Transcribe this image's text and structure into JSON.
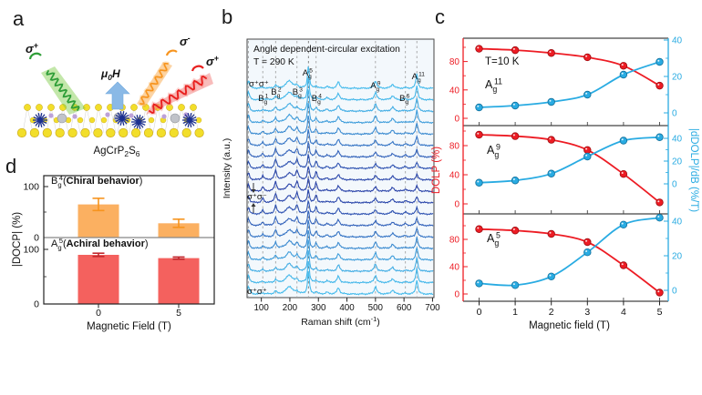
{
  "panels": {
    "a_letter": "a",
    "b_letter": "b",
    "c_letter": "c",
    "d_letter": "d"
  },
  "panel_a": {
    "compound": {
      "pre": "AgCrP",
      "sub1": "2",
      "mid": "S",
      "sub2": "6"
    },
    "field_label": {
      "mu": "μ",
      "sub": "0",
      "h": "H"
    },
    "beam_labels": {
      "incident": {
        "base": "σ",
        "sup": "+"
      },
      "scattered_minus": {
        "base": "σ",
        "sup": "-"
      },
      "scattered_plus": {
        "base": "σ",
        "sup": "+"
      }
    },
    "colors": {
      "incident_beam": "#7ac943",
      "incident_wave": "#2f9e38",
      "scattered_minus_beam": "#f7941e",
      "scattered_minus_halo": "#fbc98a",
      "scattered_plus_beam": "#e8201f",
      "scattered_plus_halo": "#f9a09a",
      "field_arrow": "#8ab9e6",
      "sulfur": "#f2de2a",
      "sulfur_edge": "#c7a419",
      "chromium": "#1b2f8f",
      "silver": "#c0c3c9",
      "silver_edge": "#8f939a",
      "phosphorus": "#bda2d8"
    }
  },
  "panel_b": {
    "title_line1": "Angle dependent-circular excitation",
    "title_line2": "T = 290 K",
    "ylabel": "Intensity (a.u.)",
    "xlabel": {
      "pre": "Raman shift (cm",
      "sup": "-1",
      "post": ")"
    },
    "x_ticks": [
      100,
      200,
      300,
      400,
      500,
      600,
      700
    ],
    "pol_labels": {
      "top": "σ⁺σ⁺",
      "middle": "σ⁺σ⁻",
      "bottom": "σ⁺σ⁺"
    },
    "peak_labels": [
      {
        "base": "B",
        "sub": "g",
        "sup": "1",
        "x": 105,
        "row": "low"
      },
      {
        "base": "B",
        "sub": "g",
        "sup": "2",
        "x": 150,
        "row": "high"
      },
      {
        "base": "B",
        "sub": "g",
        "sup": "3",
        "x": 225,
        "row": "high"
      },
      {
        "base": "B",
        "sub": "g",
        "sup": "4",
        "x": 292,
        "row": "low"
      },
      {
        "base": "A",
        "sub": "g",
        "sup": "5",
        "x": 260,
        "row": "top"
      },
      {
        "base": "A",
        "sub": "g",
        "sup": "9",
        "x": 498,
        "row": "mid"
      },
      {
        "base": "B",
        "sub": "g",
        "sup": "6",
        "x": 600,
        "row": "low"
      },
      {
        "base": "A",
        "sub": "g",
        "sup": "11",
        "x": 643,
        "row": "top2"
      }
    ]
  },
  "panel_c": {
    "temp_label": "T=10 K",
    "xlabel": "Magnetic field (T)",
    "ylabel_left": "DOLP (%)",
    "ylabel_right": "|dDOLP|/dB (%/T)",
    "x_ticks": [
      0,
      1,
      2,
      3,
      4,
      5
    ],
    "colors": {
      "left": "#ed1c24",
      "left_dark": "#9e0c10",
      "right": "#29abe2",
      "right_dark": "#11709c"
    }
  },
  "panel_d": {
    "xlabel": "Magnetic Field (T)",
    "ylabel": "|DOCP| (%)",
    "x_ticks": [
      "0",
      "5"
    ]
  },
  "chart_data": [
    {
      "id": "b-raman",
      "type": "line",
      "subtype": "stacked-raman-spectra",
      "title": "Angle dependent-circular excitation",
      "temperature": "T = 290 K",
      "n_traces": 19,
      "x_range": [
        50,
        705
      ],
      "x_unit": "cm-1",
      "peaks": [
        {
          "pos": 55,
          "amp": 9,
          "w": 4,
          "sym": "E"
        },
        {
          "pos": 105,
          "amp": 3.2,
          "w": 4,
          "sym": "B"
        },
        {
          "pos": 150,
          "amp": 7,
          "w": 4.5,
          "sym": "B"
        },
        {
          "pos": 198,
          "amp": 8.5,
          "w": 13,
          "sym": "E"
        },
        {
          "pos": 225,
          "amp": 6.5,
          "w": 5,
          "sym": "B"
        },
        {
          "pos": 265,
          "amp": 26,
          "w": 3.5,
          "sym": "A"
        },
        {
          "pos": 292,
          "amp": 6,
          "w": 4,
          "sym": "B"
        },
        {
          "pos": 330,
          "amp": 2,
          "w": 5,
          "sym": "E"
        },
        {
          "pos": 370,
          "amp": 7,
          "w": 5.5,
          "sym": "E"
        },
        {
          "pos": 500,
          "amp": 8.5,
          "w": 5,
          "sym": "A"
        },
        {
          "pos": 560,
          "amp": 4.5,
          "w": 6,
          "sym": "E"
        },
        {
          "pos": 605,
          "amp": 1.6,
          "w": 5,
          "sym": "B"
        },
        {
          "pos": 645,
          "amp": 16,
          "w": 4,
          "sym": "A2"
        }
      ],
      "dashed_lines": [
        55,
        105,
        150,
        225,
        265,
        292,
        500,
        605,
        645
      ],
      "color_light": "#45bbec",
      "color_dark": "#2b44a9"
    },
    {
      "id": "c-top",
      "type": "line",
      "mode": {
        "base": "A",
        "sub": "g",
        "sup": "11"
      },
      "x": [
        0,
        1,
        2,
        3,
        4,
        5
      ],
      "series": [
        {
          "name": "DOLP",
          "axis": "left",
          "color": "#ed1c24",
          "values": [
            98,
            96,
            92,
            86,
            74,
            46
          ]
        },
        {
          "name": "|dDOLP|/dB",
          "axis": "right",
          "color": "#29abe2",
          "values": [
            3,
            4,
            6,
            10,
            21,
            28
          ]
        }
      ],
      "yticks_left": [
        0,
        40,
        80
      ],
      "yticks_right": [
        0,
        20,
        40
      ]
    },
    {
      "id": "c-middle",
      "type": "line",
      "mode": {
        "base": "A",
        "sub": "g",
        "sup": "9"
      },
      "x": [
        0,
        1,
        2,
        3,
        4,
        5
      ],
      "series": [
        {
          "name": "DOLP",
          "axis": "left",
          "color": "#ed1c24",
          "values": [
            95,
            93,
            88,
            74,
            41,
            2
          ]
        },
        {
          "name": "|dDOLP|/dB",
          "axis": "right",
          "color": "#29abe2",
          "values": [
            1,
            3,
            9,
            24,
            38,
            41
          ]
        }
      ],
      "yticks_left": [
        0,
        40,
        80
      ],
      "yticks_right": [
        0,
        20,
        40
      ]
    },
    {
      "id": "c-bottom",
      "type": "line",
      "mode": {
        "base": "A",
        "sub": "g",
        "sup": "5"
      },
      "x": [
        0,
        1,
        2,
        3,
        4,
        5
      ],
      "series": [
        {
          "name": "DOLP",
          "axis": "left",
          "color": "#ed1c24",
          "values": [
            95,
            93,
            88,
            76,
            42,
            2
          ]
        },
        {
          "name": "|dDOLP|/dB",
          "axis": "right",
          "color": "#29abe2",
          "values": [
            4,
            3,
            8,
            22,
            38,
            42
          ]
        }
      ],
      "yticks_left": [
        0,
        40,
        80
      ],
      "yticks_right": [
        0,
        20,
        40
      ]
    },
    {
      "id": "d-top",
      "type": "bar",
      "mode": {
        "base": "B",
        "sub": "g",
        "sup": "4"
      },
      "behavior_open": "(",
      "behavior": "Chiral behavior",
      "behavior_close": ")",
      "categories": [
        "0",
        "5"
      ],
      "values": [
        65,
        28
      ],
      "errors": [
        12,
        8
      ],
      "bar_color": "#fbb061",
      "error_color": "#f7941d",
      "yticks": [
        0,
        100
      ]
    },
    {
      "id": "d-bottom",
      "type": "bar",
      "mode": {
        "base": "A",
        "sub": "g",
        "sup": "5"
      },
      "behavior_open": "(",
      "behavior": "Achiral behavior",
      "behavior_close": ")",
      "categories": [
        "0",
        "5"
      ],
      "values": [
        90,
        84
      ],
      "errors": [
        3,
        2
      ],
      "bar_color": "#f4615e",
      "error_color": "#c1272d",
      "yticks": [
        0,
        100
      ]
    }
  ]
}
